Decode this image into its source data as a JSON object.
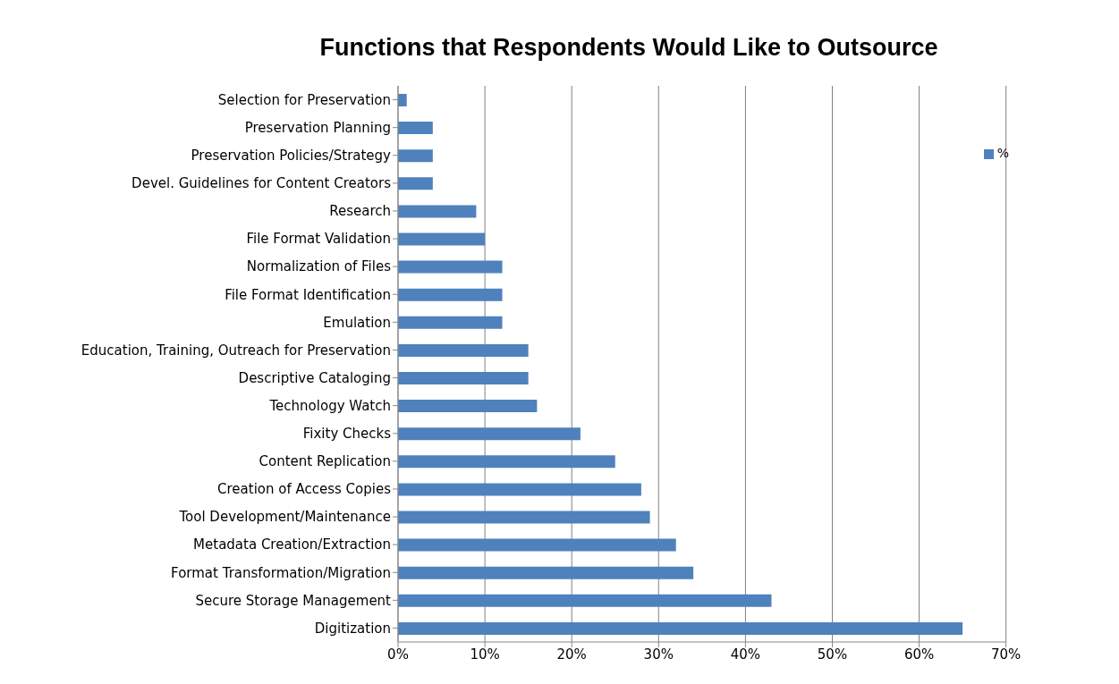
{
  "chart_data": {
    "type": "bar",
    "orientation": "horizontal",
    "title": "Functions that Respondents Would Like to Outsource",
    "categories": [
      "Selection for Preservation",
      "Preservation Planning",
      "Preservation Policies/Strategy",
      "Devel. Guidelines for Content Creators",
      "Research",
      "File Format Validation",
      "Normalization  of Files",
      "File Format Identification",
      "Emulation",
      "Education, Training,  Outreach for Preservation",
      "Descriptive Cataloging",
      "Technology Watch",
      "Fixity Checks",
      "Content Replication",
      "Creation of Access Copies",
      "Tool Development/Maintenance",
      "Metadata Creation/Extraction",
      "Format Transformation/Migration",
      "Secure Storage Management",
      "Digitization"
    ],
    "series": [
      {
        "name": "%",
        "color": "#4f81bd",
        "values": [
          1,
          4,
          4,
          4,
          9,
          10,
          12,
          12,
          12,
          15,
          15,
          16,
          21,
          25,
          28,
          29,
          32,
          34,
          43,
          65
        ]
      }
    ],
    "xlim": [
      0,
      70
    ],
    "xticks": [
      {
        "value": 0,
        "label": "0%"
      },
      {
        "value": 10,
        "label": "10%"
      },
      {
        "value": 20,
        "label": "20%"
      },
      {
        "value": 30,
        "label": "30%"
      },
      {
        "value": 40,
        "label": "40%"
      },
      {
        "value": 50,
        "label": "50%"
      },
      {
        "value": 60,
        "label": "60%"
      },
      {
        "value": 70,
        "label": "70%"
      }
    ],
    "grid": "x",
    "legend": "top right"
  }
}
